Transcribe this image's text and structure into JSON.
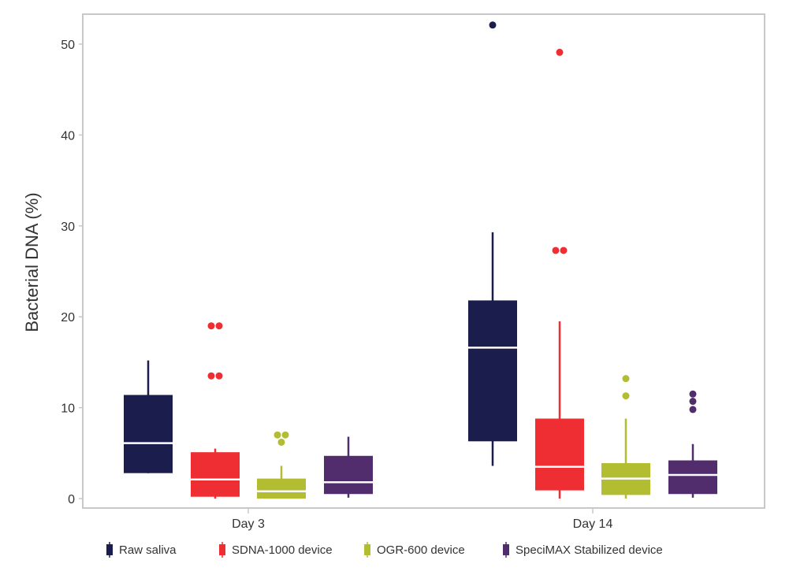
{
  "chart_data": {
    "type": "box",
    "xlabel": "",
    "ylabel": "Bacterial DNA (%)",
    "ylim": [
      0,
      53
    ],
    "yticks": [
      0,
      10,
      20,
      30,
      40,
      50
    ],
    "grid": false,
    "legend_placement": "bottom",
    "categories": [
      "Day 3",
      "Day 14"
    ],
    "series": [
      {
        "name": "Raw saliva",
        "color": "#1b1d4d",
        "boxes": [
          {
            "min": 2.8,
            "q1": 2.8,
            "median": 6.1,
            "q3": 11.4,
            "max": 15.2,
            "outliers": []
          },
          {
            "min": 3.6,
            "q1": 6.3,
            "median": 16.6,
            "q3": 21.8,
            "max": 29.3,
            "outliers": [
              52.1
            ]
          }
        ]
      },
      {
        "name": "SDNA-1000 device",
        "color": "#ee2e32",
        "boxes": [
          {
            "min": 0,
            "q1": 0.2,
            "median": 2.1,
            "q3": 5.1,
            "max": 5.5,
            "outliers": [
              19.0,
              19.0,
              13.5,
              13.5
            ]
          },
          {
            "min": 0,
            "q1": 0.9,
            "median": 3.5,
            "q3": 8.8,
            "max": 19.5,
            "outliers": [
              49.1,
              27.3,
              27.3
            ]
          }
        ]
      },
      {
        "name": "OGR-600 device",
        "color": "#b2bd31",
        "boxes": [
          {
            "min": 0,
            "q1": 0,
            "median": 0.8,
            "q3": 2.2,
            "max": 3.6,
            "outliers": [
              7.0,
              7.0,
              6.2
            ]
          },
          {
            "min": 0,
            "q1": 0.4,
            "median": 2.2,
            "q3": 3.9,
            "max": 8.8,
            "outliers": [
              13.2,
              11.3
            ]
          }
        ]
      },
      {
        "name": "SpeciMAX Stabilized device",
        "color": "#512d6d",
        "boxes": [
          {
            "min": 0.1,
            "q1": 0.5,
            "median": 1.8,
            "q3": 4.7,
            "max": 6.8,
            "outliers": []
          },
          {
            "min": 0.1,
            "q1": 0.5,
            "median": 2.6,
            "q3": 4.2,
            "max": 6.0,
            "outliers": [
              11.5,
              10.7,
              9.8
            ]
          }
        ]
      }
    ]
  }
}
